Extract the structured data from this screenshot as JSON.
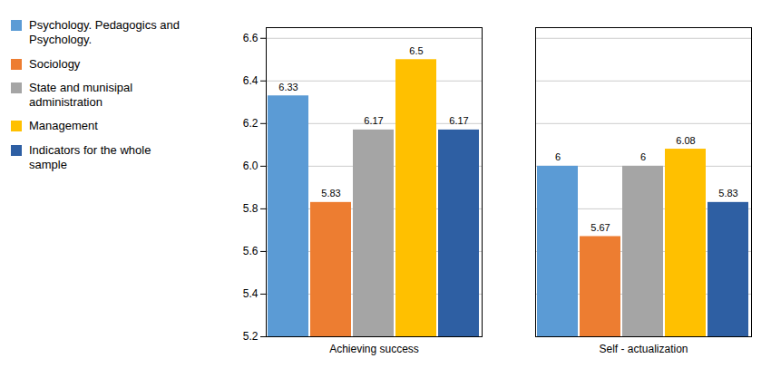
{
  "chart_data": {
    "type": "bar",
    "categories": [
      "Achieving success",
      "Self - actualization"
    ],
    "series": [
      {
        "name": "Psychology. Pedagogics and\nPsychology.",
        "color": "#5B9BD5",
        "values": [
          6.33,
          6.0
        ]
      },
      {
        "name": "Sociology",
        "color": "#ED7D31",
        "values": [
          5.83,
          5.67
        ]
      },
      {
        "name": "State and munisipal\nadministration",
        "color": "#A5A5A5",
        "values": [
          6.17,
          6.0
        ]
      },
      {
        "name": "Management",
        "color": "#FFC000",
        "values": [
          6.5,
          6.08
        ]
      },
      {
        "name": "Indicators for the whole\nsample",
        "color": "#2E5FA3",
        "values": [
          6.17,
          5.83
        ]
      }
    ],
    "ylim": [
      5.2,
      6.65
    ],
    "yticks": [
      5.2,
      5.4,
      5.6,
      5.8,
      {
        "value": 6.0,
        "label": "6.0"
      },
      6.2,
      6.4,
      6.6
    ],
    "grid": true,
    "data_labels": true,
    "legend": "left"
  }
}
